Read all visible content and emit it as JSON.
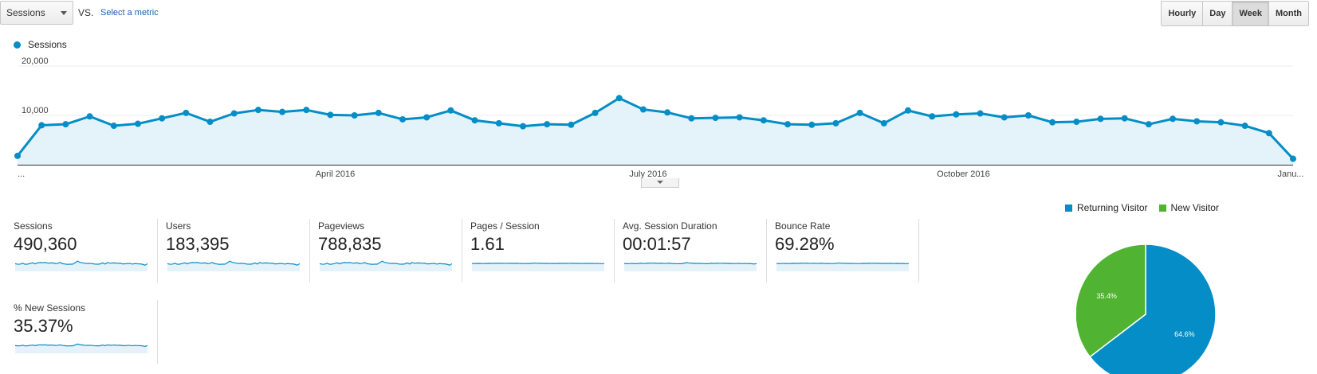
{
  "controls": {
    "metric_select": "Sessions",
    "vs": "VS.",
    "select_metric": "Select a metric",
    "granularity": [
      "Hourly",
      "Day",
      "Week",
      "Month"
    ],
    "active_granularity": "Week"
  },
  "colors": {
    "accent": "#058dc7",
    "green": "#50b432",
    "fill": "#e4f2fa"
  },
  "chart_data": {
    "type": "area",
    "series": [
      {
        "name": "Sessions",
        "values": [
          1800,
          8000,
          8200,
          9800,
          7900,
          8300,
          9400,
          10500,
          8700,
          10400,
          11100,
          10700,
          11100,
          10100,
          10000,
          10500,
          9200,
          9600,
          11000,
          9000,
          8400,
          7800,
          8200,
          8100,
          10500,
          13500,
          11200,
          10600,
          9400,
          9500,
          9600,
          9000,
          8200,
          8100,
          8400,
          10500,
          8400,
          11000,
          9800,
          10200,
          10400,
          9600,
          10000,
          8600,
          8700,
          9300,
          9400,
          8200,
          9300,
          8800,
          8600,
          7900,
          6400,
          1200
        ]
      }
    ],
    "x_tick_labels": [
      "...",
      "April 2016",
      "July 2016",
      "October 2016",
      "Janu..."
    ],
    "y_tick_labels": [
      "20,000",
      "10,000"
    ],
    "ylim": [
      0,
      20000
    ],
    "grid": true,
    "legend": "top-left"
  },
  "metrics": [
    {
      "label": "Sessions",
      "value": "490,360"
    },
    {
      "label": "Users",
      "value": "183,395"
    },
    {
      "label": "Pageviews",
      "value": "788,835"
    },
    {
      "label": "Pages / Session",
      "value": "1.61"
    },
    {
      "label": "Avg. Session Duration",
      "value": "00:01:57"
    },
    {
      "label": "Bounce Rate",
      "value": "69.28%"
    },
    {
      "label": "% New Sessions",
      "value": "35.37%"
    }
  ],
  "pie_chart": {
    "type": "pie",
    "slices": [
      {
        "name": "Returning Visitor",
        "value": 64.6,
        "label": "64.6%",
        "color": "#058dc7"
      },
      {
        "name": "New Visitor",
        "value": 35.4,
        "label": "35.4%",
        "color": "#50b432"
      }
    ]
  }
}
